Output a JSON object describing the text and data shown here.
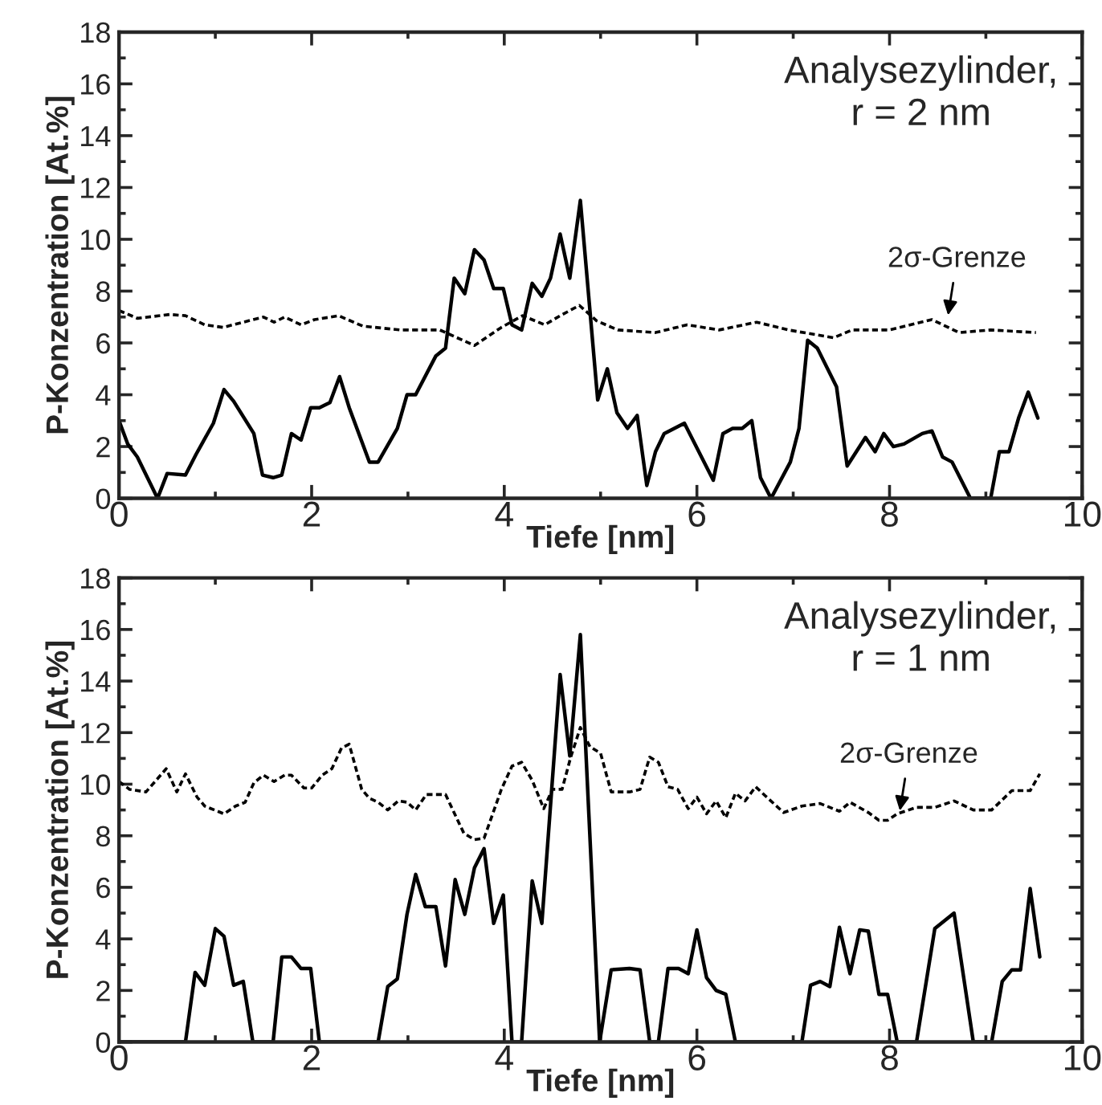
{
  "chart_data": [
    {
      "type": "line",
      "xlabel": "Tiefe [nm]",
      "ylabel": "P-Konzentration [At.%]",
      "xlim": [
        0,
        10
      ],
      "ylim": [
        0,
        18
      ],
      "xticks": [
        0,
        2,
        4,
        6,
        8,
        10
      ],
      "yticks": [
        0,
        2,
        4,
        6,
        8,
        10,
        12,
        14,
        16,
        18
      ],
      "grid": false,
      "legend": false,
      "annotations": [
        "Analysezylinder,\nr = 2 nm",
        {
          "text": "2σ-Grenze",
          "x": 8.6,
          "y": 6.9
        }
      ],
      "series": [
        {
          "color": "#000000",
          "line_style": "solid",
          "x": [
            0,
            0.09,
            0.19,
            0.4,
            0.5,
            0.69,
            0.8,
            0.98,
            1.09,
            1.19,
            1.4,
            1.49,
            1.6,
            1.69,
            1.79,
            1.89,
            1.99,
            2.08,
            2.19,
            2.29,
            2.39,
            2.6,
            2.69,
            2.89,
            2.99,
            3.08,
            3.29,
            3.39,
            3.48,
            3.59,
            3.69,
            3.79,
            3.89,
            3.99,
            4.08,
            4.18,
            4.29,
            4.39,
            4.48,
            4.58,
            4.68,
            4.79,
            4.97,
            5.07,
            5.17,
            5.28,
            5.38,
            5.48,
            5.57,
            5.66,
            5.87,
            6.17,
            6.27,
            6.37,
            6.47,
            6.57,
            6.66,
            6.77,
            6.97,
            7.06,
            7.15,
            7.25,
            7.45,
            7.56,
            7.75,
            7.85,
            7.94,
            8.04,
            8.15,
            8.34,
            8.44,
            8.55,
            8.65,
            8.84,
            9.05,
            9.14,
            9.24,
            9.34,
            9.44,
            9.54
          ],
          "values": [
            3.0,
            2.1,
            1.6,
            0,
            0.96,
            0.9,
            1.7,
            2.9,
            4.2,
            3.75,
            2.5,
            0.9,
            0.8,
            0.9,
            2.5,
            2.25,
            3.5,
            3.5,
            3.7,
            4.7,
            3.5,
            1.4,
            1.4,
            2.7,
            4.0,
            4.0,
            5.5,
            5.8,
            8.5,
            7.9,
            9.6,
            9.2,
            8.1,
            8.1,
            6.7,
            6.5,
            8.3,
            7.8,
            8.5,
            10.2,
            8.5,
            11.5,
            3.8,
            5.0,
            3.3,
            2.7,
            3.2,
            0.5,
            1.8,
            2.5,
            2.9,
            0.7,
            2.5,
            2.7,
            2.7,
            3.0,
            0.8,
            0,
            1.4,
            2.7,
            6.1,
            5.8,
            4.3,
            1.25,
            2.35,
            1.8,
            2.5,
            2.0,
            2.1,
            2.5,
            2.6,
            1.6,
            1.4,
            0,
            0,
            1.8,
            1.8,
            3.1,
            4.1,
            3.1
          ]
        },
        {
          "color": "#000000",
          "line_style": "dotted",
          "x": [
            0,
            0.19,
            0.53,
            0.69,
            0.89,
            1.08,
            1.5,
            1.61,
            1.72,
            1.89,
            2.03,
            2.28,
            2.53,
            2.92,
            3.33,
            3.69,
            3.97,
            4.19,
            4.42,
            4.58,
            4.78,
            4.96,
            5.18,
            5.57,
            5.9,
            6.23,
            6.62,
            6.95,
            7.42,
            7.61,
            8.0,
            8.44,
            8.72,
            9.05,
            9.52
          ],
          "values": [
            7.25,
            6.95,
            7.1,
            7.05,
            6.7,
            6.6,
            7.0,
            6.8,
            7.0,
            6.7,
            6.9,
            7.05,
            6.65,
            6.5,
            6.5,
            5.9,
            6.6,
            7.05,
            6.7,
            7.05,
            7.45,
            6.85,
            6.5,
            6.4,
            6.7,
            6.5,
            6.8,
            6.5,
            6.2,
            6.5,
            6.5,
            6.9,
            6.4,
            6.5,
            6.4
          ]
        }
      ]
    },
    {
      "type": "line",
      "xlabel": "Tiefe [nm]",
      "ylabel": "P-Konzentration [At.%]",
      "xlim": [
        0,
        10
      ],
      "ylim": [
        0,
        18
      ],
      "xticks": [
        0,
        2,
        4,
        6,
        8,
        10
      ],
      "yticks": [
        0,
        2,
        4,
        6,
        8,
        10,
        12,
        14,
        16,
        18
      ],
      "grid": false,
      "legend": false,
      "annotations": [
        "Analysezylinder,\nr = 1 nm",
        {
          "text": "2σ-Grenze",
          "x": 8.1,
          "y": 8.8
        }
      ],
      "series": [
        {
          "color": "#000000",
          "line_style": "solid",
          "x": [
            0,
            0.69,
            0.79,
            0.89,
            1.0,
            1.09,
            1.19,
            1.29,
            1.39,
            1.6,
            1.69,
            1.79,
            1.89,
            1.99,
            2.08,
            2.69,
            2.79,
            2.89,
            2.99,
            3.08,
            3.18,
            3.29,
            3.39,
            3.49,
            3.59,
            3.69,
            3.79,
            3.89,
            3.99,
            4.08,
            4.18,
            4.29,
            4.39,
            4.58,
            4.68,
            4.79,
            4.99,
            5.11,
            5.3,
            5.41,
            5.51,
            5.6,
            5.7,
            5.81,
            5.91,
            6.0,
            6.1,
            6.2,
            6.3,
            6.4,
            7.09,
            7.18,
            7.28,
            7.38,
            7.48,
            7.59,
            7.69,
            7.78,
            7.89,
            7.98,
            8.08,
            8.28,
            8.47,
            8.67,
            8.87,
            9.06,
            9.17,
            9.27,
            9.36,
            9.46,
            9.56
          ],
          "values": [
            0,
            0,
            2.7,
            2.2,
            4.4,
            4.1,
            2.2,
            2.35,
            0,
            0,
            3.3,
            3.3,
            2.85,
            2.85,
            0,
            0,
            2.15,
            2.45,
            4.95,
            6.5,
            5.25,
            5.25,
            2.95,
            6.3,
            4.95,
            6.75,
            7.5,
            4.6,
            5.7,
            0,
            0,
            6.25,
            4.6,
            14.25,
            11.1,
            15.8,
            0,
            2.8,
            2.85,
            2.8,
            0,
            0,
            2.85,
            2.85,
            2.65,
            4.35,
            2.5,
            2.0,
            1.85,
            0,
            0,
            2.2,
            2.35,
            2.15,
            4.45,
            2.65,
            4.35,
            4.3,
            1.85,
            1.85,
            0,
            0,
            4.4,
            5.0,
            0,
            0,
            2.35,
            2.8,
            2.8,
            5.95,
            3.3
          ]
        },
        {
          "color": "#000000",
          "line_style": "dotted",
          "x": [
            0,
            0.11,
            0.28,
            0.49,
            0.6,
            0.69,
            0.81,
            0.89,
            1.09,
            1.21,
            1.31,
            1.4,
            1.5,
            1.61,
            1.72,
            1.79,
            1.92,
            2.0,
            2.11,
            2.21,
            2.31,
            2.39,
            2.52,
            2.6,
            2.69,
            2.79,
            2.9,
            2.99,
            3.08,
            3.19,
            3.39,
            3.58,
            3.69,
            3.79,
            3.97,
            4.08,
            4.18,
            4.29,
            4.41,
            4.5,
            4.6,
            4.69,
            4.79,
            4.89,
            5.0,
            5.11,
            5.3,
            5.41,
            5.51,
            5.6,
            5.7,
            5.8,
            5.91,
            6.0,
            6.1,
            6.2,
            6.3,
            6.4,
            6.5,
            6.61,
            6.71,
            6.9,
            7.09,
            7.28,
            7.48,
            7.59,
            7.78,
            7.89,
            7.98,
            8.08,
            8.28,
            8.47,
            8.67,
            8.87,
            9.06,
            9.27,
            9.46,
            9.56
          ],
          "values": [
            10.1,
            9.8,
            9.7,
            10.6,
            9.7,
            10.4,
            9.5,
            9.15,
            8.85,
            9.15,
            9.3,
            10.05,
            10.35,
            10.1,
            10.35,
            10.35,
            9.85,
            9.85,
            10.35,
            10.6,
            11.4,
            11.55,
            9.8,
            9.45,
            9.3,
            9.0,
            9.35,
            9.3,
            9.0,
            9.6,
            9.6,
            8.1,
            7.85,
            7.9,
            9.8,
            10.7,
            10.85,
            10.15,
            9.05,
            9.8,
            9.8,
            11.05,
            12.2,
            11.45,
            11.2,
            9.7,
            9.7,
            9.8,
            11.05,
            10.85,
            9.9,
            9.8,
            9.05,
            9.5,
            8.85,
            9.35,
            8.7,
            9.65,
            9.35,
            9.9,
            9.55,
            8.9,
            9.15,
            9.25,
            8.95,
            9.3,
            8.9,
            8.6,
            8.6,
            8.85,
            9.1,
            9.1,
            9.35,
            9.0,
            9.0,
            9.75,
            9.75,
            10.4
          ]
        }
      ]
    }
  ]
}
